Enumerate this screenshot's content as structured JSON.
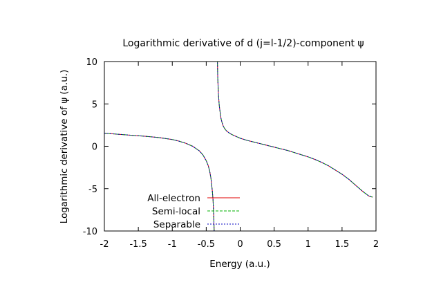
{
  "chart_data": {
    "type": "line",
    "title": "Logarithmic derivative of d (j=l-1/2)-component ψ",
    "xlabel": "Energy (a.u.)",
    "ylabel": "Logarithmic derivative of ψ (a.u.)",
    "xlim": [
      -2,
      2
    ],
    "ylim": [
      -10,
      10
    ],
    "xticks": [
      "-2",
      "-1.5",
      "-1",
      "-0.5",
      "0",
      "0.5",
      "1",
      "1.5",
      "2"
    ],
    "yticks": [
      "10",
      "5",
      "0",
      "-5",
      "-10"
    ],
    "grid": false,
    "legend_position": "bottom-left",
    "x": [
      -2.0,
      -1.8,
      -1.6,
      -1.4,
      -1.2,
      -1.0,
      -0.9,
      -0.8,
      -0.7,
      -0.6,
      -0.55,
      -0.5,
      -0.47,
      -0.45,
      -0.43,
      -0.41,
      -0.4,
      -0.39,
      -0.38,
      -0.37,
      -0.36,
      -0.35,
      -0.34,
      -0.33,
      -0.32,
      -0.31,
      -0.305,
      -0.3,
      -0.295,
      -0.29,
      -0.28,
      -0.27,
      -0.26,
      -0.25,
      -0.23,
      -0.2,
      -0.15,
      -0.1,
      0.0,
      0.1,
      0.2,
      0.3,
      0.4,
      0.5,
      0.6,
      0.7,
      0.8,
      0.9,
      1.0,
      1.1,
      1.2,
      1.3,
      1.4,
      1.5,
      1.6,
      1.7,
      1.75,
      1.8,
      1.85,
      1.9,
      1.95
    ],
    "series": [
      {
        "name": "All-electron",
        "color": "#e00000",
        "dash": "solid",
        "values": [
          1.55,
          1.42,
          1.3,
          1.18,
          1.03,
          0.8,
          0.6,
          0.35,
          0.0,
          -0.55,
          -1.0,
          -1.7,
          -2.3,
          -2.9,
          -3.8,
          -5.3,
          -6.3,
          -8.0,
          -11.0,
          -16.0,
          null,
          20.0,
          12.0,
          8.0,
          6.1,
          5.0,
          4.6,
          4.3,
          4.0,
          3.6,
          3.2,
          2.9,
          2.6,
          2.4,
          2.1,
          1.8,
          1.5,
          1.3,
          0.95,
          0.7,
          0.5,
          0.3,
          0.1,
          -0.1,
          -0.3,
          -0.5,
          -0.75,
          -1.0,
          -1.25,
          -1.55,
          -1.9,
          -2.3,
          -2.8,
          -3.3,
          -3.9,
          -4.6,
          -4.95,
          -5.3,
          -5.6,
          -5.9,
          -6.0
        ]
      },
      {
        "name": "Semi-local",
        "color": "#00b000",
        "dash": "dashed",
        "values": [
          1.55,
          1.42,
          1.3,
          1.18,
          1.03,
          0.8,
          0.6,
          0.35,
          0.0,
          -0.55,
          -1.0,
          -1.7,
          -2.3,
          -2.9,
          -3.8,
          -5.3,
          -6.3,
          -8.0,
          -11.0,
          -16.0,
          null,
          20.0,
          12.0,
          8.0,
          6.1,
          5.0,
          4.6,
          4.3,
          4.0,
          3.6,
          3.2,
          2.9,
          2.6,
          2.4,
          2.1,
          1.8,
          1.5,
          1.3,
          0.95,
          0.7,
          0.5,
          0.3,
          0.1,
          -0.1,
          -0.3,
          -0.5,
          -0.75,
          -1.0,
          -1.25,
          -1.55,
          -1.9,
          -2.3,
          -2.8,
          -3.3,
          -3.9,
          -4.6,
          -4.95,
          -5.3,
          -5.6,
          -5.9,
          -6.0
        ]
      },
      {
        "name": "Separable",
        "color": "#0000c0",
        "dash": "dotted",
        "values": [
          1.55,
          1.42,
          1.3,
          1.18,
          1.03,
          0.8,
          0.6,
          0.35,
          0.0,
          -0.55,
          -1.0,
          -1.7,
          -2.3,
          -2.9,
          -3.8,
          -5.3,
          -6.3,
          -8.0,
          -11.0,
          -16.0,
          null,
          20.0,
          12.0,
          8.0,
          6.1,
          5.0,
          4.6,
          4.3,
          4.0,
          3.6,
          3.2,
          2.9,
          2.6,
          2.4,
          2.1,
          1.8,
          1.5,
          1.3,
          0.95,
          0.7,
          0.5,
          0.3,
          0.1,
          -0.1,
          -0.3,
          -0.5,
          -0.75,
          -1.0,
          -1.25,
          -1.55,
          -1.9,
          -2.3,
          -2.8,
          -3.3,
          -3.9,
          -4.6,
          -4.95,
          -5.3,
          -5.6,
          -5.9,
          -6.0
        ]
      }
    ]
  }
}
